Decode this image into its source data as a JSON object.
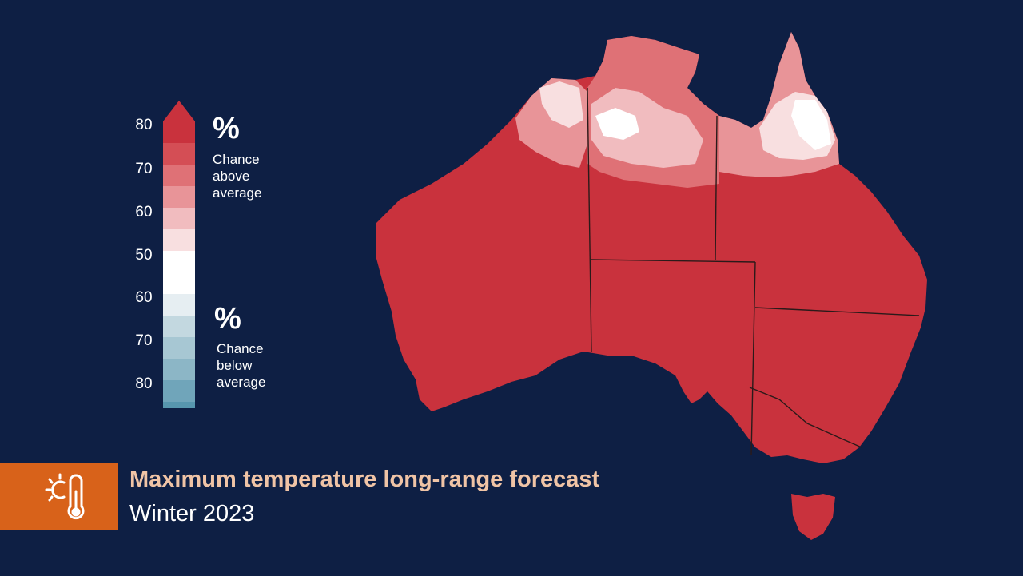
{
  "legend": {
    "above_ticks": [
      "80",
      "70",
      "60"
    ],
    "center_tick": "50",
    "below_ticks": [
      "60",
      "70",
      "80"
    ],
    "above_symbol": "%",
    "above_caption": [
      "Chance",
      "above",
      "average"
    ],
    "below_symbol": "%",
    "below_caption": [
      "Chance",
      "below",
      "average"
    ],
    "colors_above": [
      "#c9323d",
      "#d44e55",
      "#df7176",
      "#e89498",
      "#f1bcbf",
      "#f8dfe0"
    ],
    "color_neutral": "#ffffff",
    "colors_below": [
      "#e6eef2",
      "#c3d8e0",
      "#a7c7d3",
      "#8cb6c6",
      "#70a5ba",
      "#5796ae"
    ]
  },
  "title": {
    "main": "Maximum temperature long-range forecast",
    "sub": "Winter 2023",
    "icon": "sun-thermometer-icon",
    "accent_color": "#d8621a"
  },
  "map": {
    "region": "Australia",
    "dominant_color": "#c9323d",
    "near_neutral_regions": [
      "Kimberley coast",
      "Top End",
      "Cape York"
    ]
  }
}
